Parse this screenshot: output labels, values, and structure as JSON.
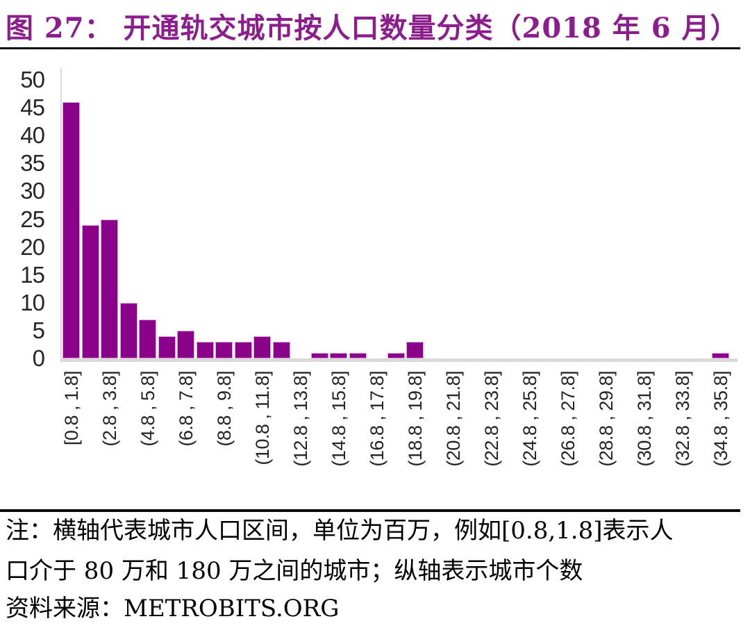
{
  "title": "图 27：  开通轨交城市按人口数量分类（2018 年 6 月）",
  "notes": {
    "line1": "注：横轴代表城市人口区间，单位为百万，例如[0.8,1.8]表示人",
    "line2": "口介于 80 万和 180 万之间的城市；纵轴表示城市个数",
    "source": "资料来源：METROBITS.ORG"
  },
  "colors": {
    "title_text": "#8B1E8C",
    "bar_fill": "#8A018A",
    "bar_edge": "#DFA3DF",
    "axis_line": "#D9D9D9",
    "tick_text": "#262626",
    "divider": "#0A0A0A"
  },
  "chart_data": {
    "type": "bar",
    "title": "开通轨交城市按人口数量分类（2018 年 6 月）",
    "bin_start": 0.8,
    "bin_width": 1.0,
    "bin_count": 35,
    "values": [
      46,
      24,
      25,
      10,
      7,
      4,
      5,
      3,
      3,
      3,
      4,
      3,
      0,
      1,
      1,
      1,
      0,
      1,
      3,
      0,
      0,
      0,
      0,
      0,
      0,
      0,
      0,
      0,
      0,
      0,
      0,
      0,
      0,
      0,
      1
    ],
    "x_tick_labels": [
      "[0.8 , 1.8]",
      "(2.8 , 3.8]",
      "(4.8 , 5.8]",
      "(6.8 , 7.8]",
      "(8.8 , 9.8]",
      "(10.8 , 11.8]",
      "(12.8 , 13.8]",
      "(14.8 , 15.8]",
      "(16.8 , 17.8]",
      "(18.8 , 19.8]",
      "(20.8 , 21.8]",
      "(22.8 , 23.8]",
      "(24.8 , 25.8]",
      "(26.8 , 27.8]",
      "(28.8 , 29.8]",
      "(30.8 , 31.8]",
      "(32.8 , 33.8]",
      "(34.8 , 35.8]"
    ],
    "x_tick_labels_every_n_bins": 2,
    "y_ticks": [
      0,
      5,
      10,
      15,
      20,
      25,
      30,
      35,
      40,
      45,
      50
    ],
    "ylim": [
      0,
      50
    ],
    "grid": false,
    "legend": false,
    "xlabel": "",
    "ylabel": ""
  }
}
